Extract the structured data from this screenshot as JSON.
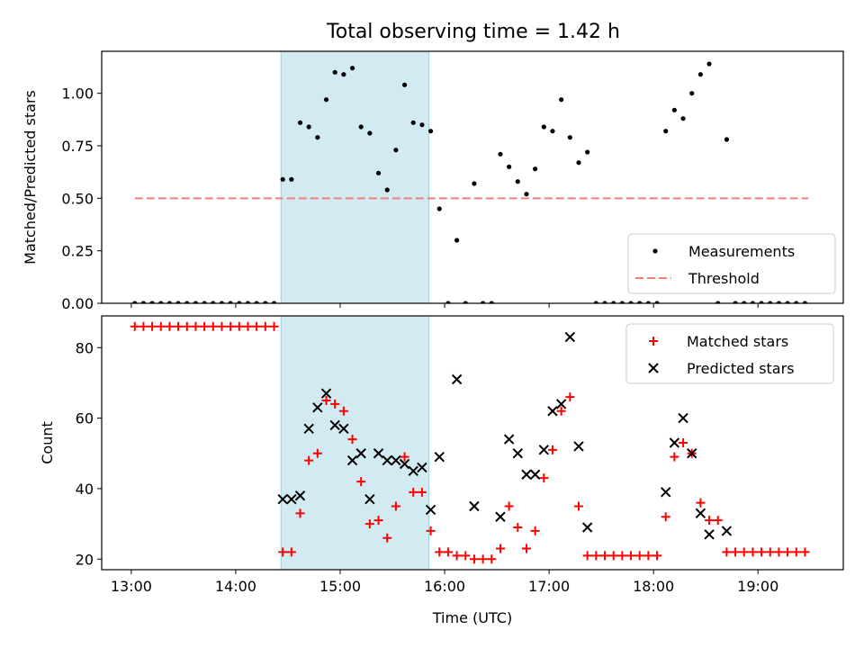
{
  "title": "Total observing time = 1.42 h",
  "colors": {
    "measure": "#000000",
    "threshold": "#f08080",
    "matched": "#ff0000",
    "predicted": "#000000",
    "span": "#add8e6"
  },
  "chart_data": [
    {
      "type": "scatter",
      "ylabel": "Matched/Predicted stars",
      "xlim": [
        "12:43",
        "19:49"
      ],
      "ylim": [
        0,
        1.2
      ],
      "yticks": [
        "0.00",
        "0.25",
        "0.50",
        "0.75",
        "1.00"
      ],
      "shaded_span": [
        "14:26",
        "15:51"
      ],
      "threshold": {
        "name": "Threshold",
        "y": 0.5,
        "x": [
          "13:02",
          "19:29"
        ]
      },
      "legend": {
        "position": "lower right",
        "entries": [
          "Measurements",
          "Threshold"
        ]
      },
      "series": [
        {
          "name": "Measurements",
          "points": [
            [
              "13:02",
              0
            ],
            [
              "13:07",
              0
            ],
            [
              "13:12",
              0
            ],
            [
              "13:17",
              0
            ],
            [
              "13:22",
              0
            ],
            [
              "13:27",
              0
            ],
            [
              "13:32",
              0
            ],
            [
              "13:37",
              0
            ],
            [
              "13:42",
              0
            ],
            [
              "13:47",
              0
            ],
            [
              "13:52",
              0
            ],
            [
              "13:57",
              0
            ],
            [
              "14:02",
              0
            ],
            [
              "14:07",
              0
            ],
            [
              "14:12",
              0
            ],
            [
              "14:17",
              0
            ],
            [
              "14:22",
              0
            ],
            [
              "14:27",
              0.59
            ],
            [
              "14:32",
              0.59
            ],
            [
              "14:37",
              0.86
            ],
            [
              "14:42",
              0.84
            ],
            [
              "14:47",
              0.79
            ],
            [
              "14:52",
              0.97
            ],
            [
              "14:57",
              1.1
            ],
            [
              "15:02",
              1.09
            ],
            [
              "15:07",
              1.12
            ],
            [
              "15:12",
              0.84
            ],
            [
              "15:17",
              0.81
            ],
            [
              "15:22",
              0.62
            ],
            [
              "15:27",
              0.54
            ],
            [
              "15:32",
              0.73
            ],
            [
              "15:37",
              1.04
            ],
            [
              "15:42",
              0.86
            ],
            [
              "15:47",
              0.85
            ],
            [
              "15:52",
              0.82
            ],
            [
              "15:57",
              0.45
            ],
            [
              "16:02",
              0
            ],
            [
              "16:07",
              0.3
            ],
            [
              "16:12",
              0
            ],
            [
              "16:17",
              0.57
            ],
            [
              "16:22",
              0
            ],
            [
              "16:27",
              0
            ],
            [
              "16:32",
              0.71
            ],
            [
              "16:37",
              0.65
            ],
            [
              "16:42",
              0.58
            ],
            [
              "16:47",
              0.52
            ],
            [
              "16:52",
              0.64
            ],
            [
              "16:57",
              0.84
            ],
            [
              "17:02",
              0.82
            ],
            [
              "17:07",
              0.97
            ],
            [
              "17:12",
              0.79
            ],
            [
              "17:17",
              0.67
            ],
            [
              "17:22",
              0.72
            ],
            [
              "17:27",
              0
            ],
            [
              "17:32",
              0
            ],
            [
              "17:37",
              0
            ],
            [
              "17:42",
              0
            ],
            [
              "17:47",
              0
            ],
            [
              "17:52",
              0
            ],
            [
              "17:57",
              0
            ],
            [
              "18:02",
              0
            ],
            [
              "18:07",
              0.82
            ],
            [
              "18:12",
              0.92
            ],
            [
              "18:17",
              0.88
            ],
            [
              "18:22",
              1.0
            ],
            [
              "18:27",
              1.09
            ],
            [
              "18:32",
              1.14
            ],
            [
              "18:37",
              0
            ],
            [
              "18:42",
              0.78
            ],
            [
              "18:47",
              0
            ],
            [
              "18:52",
              0
            ],
            [
              "18:57",
              0
            ],
            [
              "19:02",
              0
            ],
            [
              "19:07",
              0
            ],
            [
              "19:12",
              0
            ],
            [
              "19:17",
              0
            ],
            [
              "19:22",
              0
            ],
            [
              "19:27",
              0
            ]
          ]
        }
      ]
    },
    {
      "type": "scatter",
      "xlabel": "Time (UTC)",
      "ylabel": "Count",
      "xlim": [
        "12:43",
        "19:49"
      ],
      "ylim": [
        17,
        89
      ],
      "xticks": [
        "13:00",
        "14:00",
        "15:00",
        "16:00",
        "17:00",
        "18:00",
        "19:00"
      ],
      "yticks": [
        "20",
        "40",
        "60",
        "80"
      ],
      "shaded_span": [
        "14:26",
        "15:51"
      ],
      "legend": {
        "position": "upper right",
        "entries": [
          "Matched stars",
          "Predicted stars"
        ]
      },
      "series": [
        {
          "name": "Matched stars",
          "points": [
            [
              "13:02",
              86
            ],
            [
              "13:07",
              86
            ],
            [
              "13:12",
              86
            ],
            [
              "13:17",
              86
            ],
            [
              "13:22",
              86
            ],
            [
              "13:27",
              86
            ],
            [
              "13:32",
              86
            ],
            [
              "13:37",
              86
            ],
            [
              "13:42",
              86
            ],
            [
              "13:47",
              86
            ],
            [
              "13:52",
              86
            ],
            [
              "13:57",
              86
            ],
            [
              "14:02",
              86
            ],
            [
              "14:07",
              86
            ],
            [
              "14:12",
              86
            ],
            [
              "14:17",
              86
            ],
            [
              "14:22",
              86
            ],
            [
              "14:27",
              22
            ],
            [
              "14:32",
              22
            ],
            [
              "14:37",
              33
            ],
            [
              "14:42",
              48
            ],
            [
              "14:47",
              50
            ],
            [
              "14:52",
              65
            ],
            [
              "14:57",
              64
            ],
            [
              "15:02",
              62
            ],
            [
              "15:07",
              54
            ],
            [
              "15:12",
              42
            ],
            [
              "15:17",
              30
            ],
            [
              "15:22",
              31
            ],
            [
              "15:27",
              26
            ],
            [
              "15:32",
              35
            ],
            [
              "15:37",
              49
            ],
            [
              "15:42",
              39
            ],
            [
              "15:47",
              39
            ],
            [
              "15:52",
              28
            ],
            [
              "15:57",
              22
            ],
            [
              "16:02",
              22
            ],
            [
              "16:07",
              21
            ],
            [
              "16:12",
              21
            ],
            [
              "16:17",
              20
            ],
            [
              "16:22",
              20
            ],
            [
              "16:27",
              20
            ],
            [
              "16:32",
              23
            ],
            [
              "16:37",
              35
            ],
            [
              "16:42",
              29
            ],
            [
              "16:47",
              23
            ],
            [
              "16:52",
              28
            ],
            [
              "16:57",
              43
            ],
            [
              "17:02",
              51
            ],
            [
              "17:07",
              62
            ],
            [
              "17:12",
              66
            ],
            [
              "17:17",
              35
            ],
            [
              "17:22",
              21
            ],
            [
              "17:27",
              21
            ],
            [
              "17:32",
              21
            ],
            [
              "17:37",
              21
            ],
            [
              "17:42",
              21
            ],
            [
              "17:47",
              21
            ],
            [
              "17:52",
              21
            ],
            [
              "17:57",
              21
            ],
            [
              "18:02",
              21
            ],
            [
              "18:07",
              32
            ],
            [
              "18:12",
              49
            ],
            [
              "18:17",
              53
            ],
            [
              "18:22",
              50
            ],
            [
              "18:27",
              36
            ],
            [
              "18:32",
              31
            ],
            [
              "18:37",
              31
            ],
            [
              "18:42",
              22
            ],
            [
              "18:47",
              22
            ],
            [
              "18:52",
              22
            ],
            [
              "18:57",
              22
            ],
            [
              "19:02",
              22
            ],
            [
              "19:07",
              22
            ],
            [
              "19:12",
              22
            ],
            [
              "19:17",
              22
            ],
            [
              "19:22",
              22
            ],
            [
              "19:27",
              22
            ]
          ]
        },
        {
          "name": "Predicted stars",
          "points": [
            [
              "14:27",
              37
            ],
            [
              "14:32",
              37
            ],
            [
              "14:37",
              38
            ],
            [
              "14:42",
              57
            ],
            [
              "14:47",
              63
            ],
            [
              "14:52",
              67
            ],
            [
              "14:57",
              58
            ],
            [
              "15:02",
              57
            ],
            [
              "15:07",
              48
            ],
            [
              "15:12",
              50
            ],
            [
              "15:17",
              37
            ],
            [
              "15:22",
              50
            ],
            [
              "15:27",
              48
            ],
            [
              "15:32",
              48
            ],
            [
              "15:37",
              47
            ],
            [
              "15:42",
              45
            ],
            [
              "15:47",
              46
            ],
            [
              "15:52",
              34
            ],
            [
              "15:57",
              49
            ],
            [
              "16:07",
              71
            ],
            [
              "16:17",
              35
            ],
            [
              "16:32",
              32
            ],
            [
              "16:37",
              54
            ],
            [
              "16:42",
              50
            ],
            [
              "16:47",
              44
            ],
            [
              "16:52",
              44
            ],
            [
              "16:57",
              51
            ],
            [
              "17:02",
              62
            ],
            [
              "17:07",
              64
            ],
            [
              "17:12",
              83
            ],
            [
              "17:17",
              52
            ],
            [
              "17:22",
              29
            ],
            [
              "18:07",
              39
            ],
            [
              "18:12",
              53
            ],
            [
              "18:17",
              60
            ],
            [
              "18:22",
              50
            ],
            [
              "18:27",
              33
            ],
            [
              "18:32",
              27
            ],
            [
              "18:42",
              28
            ]
          ]
        }
      ]
    }
  ]
}
